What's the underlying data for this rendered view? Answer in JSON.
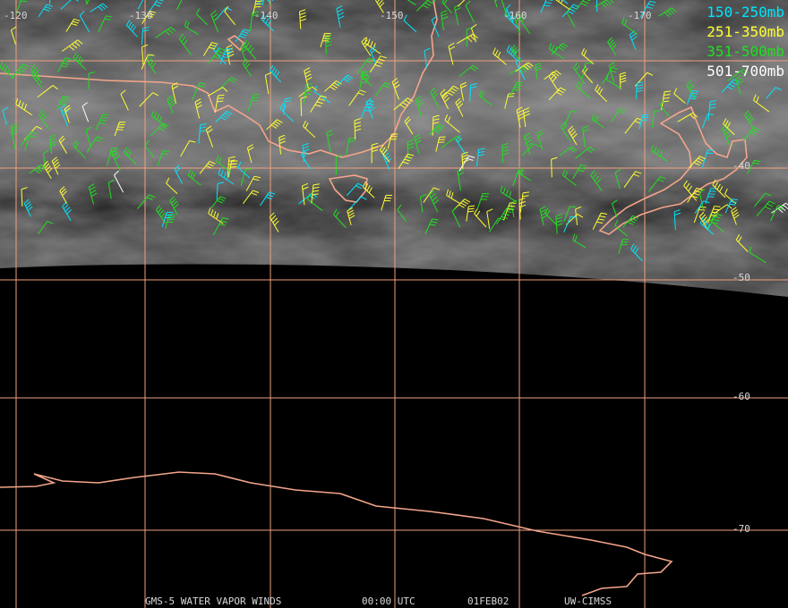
{
  "longitude_labels": [
    "-120",
    "-130",
    "-140",
    "-150",
    "-160",
    "-170"
  ],
  "latitude_labels": [
    "-40",
    "-50",
    "-60",
    "-70"
  ],
  "legend": [
    {
      "label": "150-250mb",
      "color": "#00e5ff"
    },
    {
      "label": "251-350mb",
      "color": "#ffff30"
    },
    {
      "label": "351-500mb",
      "color": "#20e020"
    },
    {
      "label": "501-700mb",
      "color": "#ffffff"
    }
  ],
  "footer": [
    "GMS-5 WATER VAPOR WINDS",
    "00:00 UTC",
    "01FEB02",
    "UW-CIMSS"
  ]
}
